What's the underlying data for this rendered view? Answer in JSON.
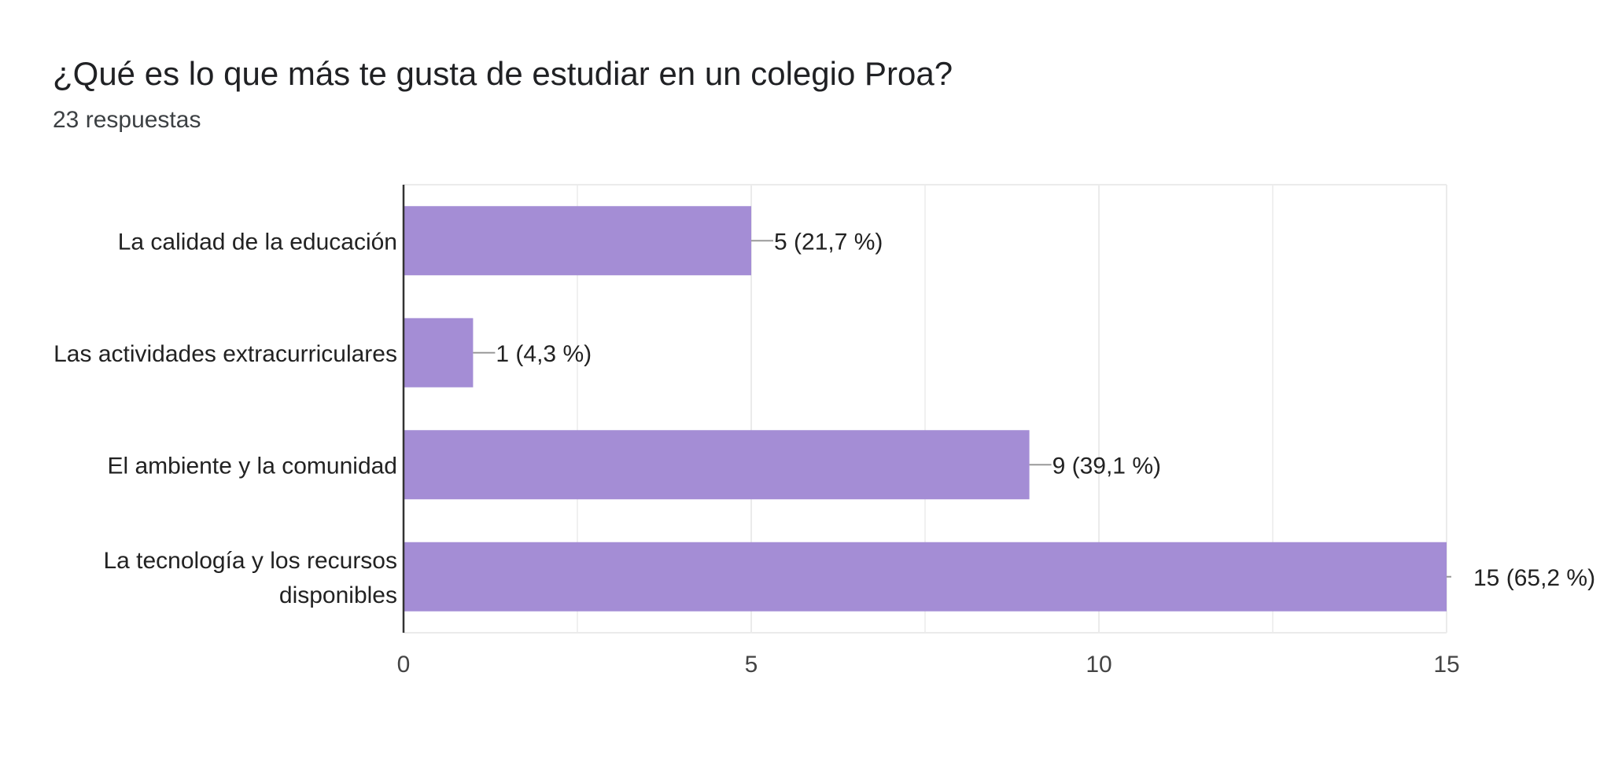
{
  "header": {
    "question": "¿Qué es lo que más te gusta de estudiar en un colegio Proa?",
    "responses": "23 respuestas"
  },
  "colors": {
    "bar": "#a48dd5",
    "axis": "#333333",
    "grid": "#ebebeb",
    "leader": "#999999"
  },
  "chart_data": {
    "type": "bar",
    "orientation": "horizontal",
    "categories": [
      [
        "La calidad de la educación"
      ],
      [
        "Las actividades extracurriculares"
      ],
      [
        "El ambiente y la comunidad"
      ],
      [
        "La tecnología y los recursos",
        "disponibles"
      ]
    ],
    "values": [
      5,
      1,
      9,
      15
    ],
    "data_labels": [
      "5 (21,7 %)",
      "1 (4,3 %)",
      "9 (39,1 %)",
      "15 (65,2 %)"
    ],
    "xlim": [
      0,
      15
    ],
    "xticks": [
      0,
      5,
      10,
      15
    ],
    "grid": true,
    "legend": "none"
  }
}
